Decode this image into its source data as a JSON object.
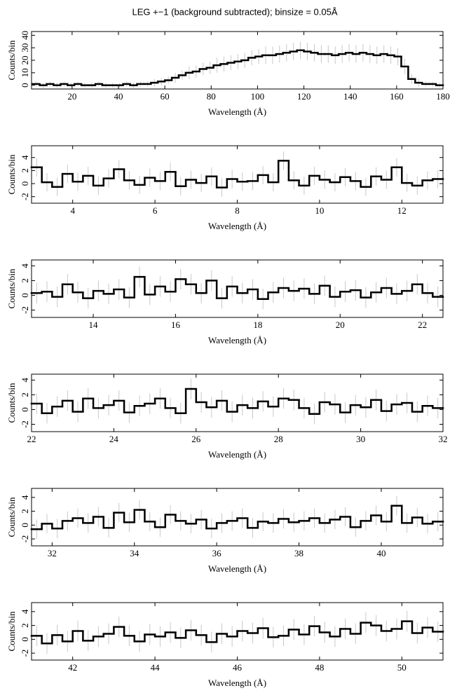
{
  "chart_data": [
    {
      "type": "histogram",
      "title": "LEG +−1 (background subtracted); binsize = 0.05Å",
      "xlabel": "Wavelength (Å)",
      "ylabel": "Counts/bin",
      "color": "#000000",
      "error_color": "#c8c8c8",
      "bins": [
        3,
        6,
        9,
        12,
        15,
        18,
        21,
        24,
        27,
        30,
        33,
        36,
        39,
        42,
        45,
        48,
        51,
        54,
        57,
        60,
        63,
        66,
        69,
        72,
        75,
        78,
        81,
        84,
        87,
        90,
        93,
        96,
        99,
        102,
        105,
        108,
        111,
        114,
        117,
        120,
        123,
        126,
        129,
        132,
        135,
        138,
        141,
        144,
        147,
        150,
        153,
        156,
        159,
        162,
        165,
        168,
        171,
        174,
        177,
        180
      ],
      "values": [
        1,
        0,
        1,
        0,
        1,
        0,
        1,
        0,
        0,
        1,
        0,
        0,
        0,
        1,
        0,
        1,
        1,
        2,
        3,
        4,
        6,
        8,
        10,
        11,
        13,
        14,
        16,
        17,
        18,
        19,
        20,
        22,
        23,
        24,
        24,
        25,
        26,
        27,
        28,
        27,
        26,
        25,
        25,
        24,
        25,
        26,
        25,
        26,
        25,
        24,
        25,
        24,
        23,
        15,
        5,
        2,
        1,
        1,
        0
      ],
      "errors": [
        2,
        2,
        2,
        2,
        2,
        2,
        2,
        2,
        2,
        2,
        2,
        2,
        2,
        2,
        2,
        2,
        2,
        3,
        3,
        3,
        4,
        4,
        5,
        5,
        5,
        5,
        6,
        6,
        6,
        6,
        6,
        6,
        6,
        7,
        7,
        7,
        7,
        7,
        7,
        7,
        7,
        7,
        7,
        7,
        7,
        7,
        7,
        7,
        7,
        7,
        7,
        7,
        7,
        6,
        4,
        3,
        2,
        2,
        2
      ],
      "xlim": [
        2.5,
        180
      ],
      "ylim": [
        -3,
        43
      ],
      "xticks": [
        20,
        40,
        60,
        80,
        100,
        120,
        140,
        160,
        180
      ],
      "yticks": [
        0,
        10,
        20,
        30,
        40
      ]
    },
    {
      "type": "histogram",
      "xlabel": "Wavelength (Å)",
      "ylabel": "Counts/bin",
      "color": "#000000",
      "error_color": "#c8c8c8",
      "bins": [
        3,
        3.25,
        3.5,
        3.75,
        4,
        4.25,
        4.5,
        4.75,
        5,
        5.25,
        5.5,
        5.75,
        6,
        6.25,
        6.5,
        6.75,
        7,
        7.25,
        7.5,
        7.75,
        8,
        8.25,
        8.5,
        8.75,
        9,
        9.25,
        9.5,
        9.75,
        10,
        10.25,
        10.5,
        10.75,
        11,
        11.25,
        11.5,
        11.75,
        12,
        12.25,
        12.5,
        12.75,
        13
      ],
      "values": [
        2.5,
        0.2,
        -0.5,
        1.5,
        0.3,
        1.2,
        -0.3,
        0.8,
        2.2,
        0.5,
        -0.2,
        0.9,
        0.4,
        1.8,
        -0.4,
        0.6,
        0.1,
        1.1,
        -0.6,
        0.7,
        0.3,
        0.4,
        1.3,
        0.2,
        3.5,
        0.5,
        -0.3,
        1.2,
        0.6,
        0.2,
        1.0,
        0.4,
        -0.5,
        1.1,
        0.6,
        2.5,
        0.1,
        -0.3,
        0.5,
        0.7
      ],
      "error": 1.4,
      "xlim": [
        3,
        13
      ],
      "ylim": [
        -3,
        5.8
      ],
      "xticks": [
        4,
        6,
        8,
        10,
        12
      ],
      "yticks": [
        -2,
        0,
        2,
        4
      ]
    },
    {
      "type": "histogram",
      "xlabel": "Wavelength (Å)",
      "ylabel": "Counts/bin",
      "color": "#000000",
      "error_color": "#c8c8c8",
      "bins": [
        12.5,
        12.75,
        13,
        13.25,
        13.5,
        13.75,
        14,
        14.25,
        14.5,
        14.75,
        15,
        15.25,
        15.5,
        15.75,
        16,
        16.25,
        16.5,
        16.75,
        17,
        17.25,
        17.5,
        17.75,
        18,
        18.25,
        18.5,
        18.75,
        19,
        19.25,
        19.5,
        19.75,
        20,
        20.25,
        20.5,
        20.75,
        21,
        21.25,
        21.5,
        21.75,
        22,
        22.25,
        22.5
      ],
      "values": [
        0.3,
        0.5,
        -0.2,
        1.5,
        0.4,
        -0.4,
        0.6,
        0.2,
        0.8,
        -0.3,
        2.5,
        0.1,
        1.2,
        0.5,
        2.2,
        1.5,
        0.3,
        2.0,
        -0.4,
        1.2,
        0.3,
        0.8,
        -0.5,
        0.4,
        1.0,
        0.6,
        0.9,
        0.2,
        1.3,
        -0.2,
        0.5,
        0.7,
        -0.3,
        0.4,
        1.0,
        0.2,
        0.6,
        1.5,
        0.3,
        -0.2
      ],
      "error": 1.4,
      "xlim": [
        12.5,
        22.5
      ],
      "ylim": [
        -3,
        4.8
      ],
      "xticks": [
        14,
        16,
        18,
        20,
        22
      ],
      "yticks": [
        -2,
        0,
        2,
        4
      ]
    },
    {
      "type": "histogram",
      "xlabel": "Wavelength (Å)",
      "ylabel": "Counts/bin",
      "color": "#000000",
      "error_color": "#c8c8c8",
      "bins": [
        22,
        22.25,
        22.5,
        22.75,
        23,
        23.25,
        23.5,
        23.75,
        24,
        24.25,
        24.5,
        24.75,
        25,
        25.25,
        25.5,
        25.75,
        26,
        26.25,
        26.5,
        26.75,
        27,
        27.25,
        27.5,
        27.75,
        28,
        28.25,
        28.5,
        28.75,
        29,
        29.25,
        29.5,
        29.75,
        30,
        30.25,
        30.5,
        30.75,
        31,
        31.25,
        31.5,
        31.75,
        32
      ],
      "values": [
        0.8,
        -0.5,
        0.4,
        1.2,
        -0.3,
        1.5,
        0.2,
        0.6,
        1.2,
        -0.4,
        0.5,
        0.8,
        1.5,
        0.2,
        -0.5,
        2.8,
        1.0,
        0.3,
        1.2,
        -0.3,
        0.6,
        0.2,
        1.1,
        0.4,
        1.5,
        1.3,
        0.2,
        -0.6,
        1.0,
        0.7,
        -0.4,
        0.6,
        0.3,
        1.3,
        -0.2,
        0.7,
        0.9,
        -0.3,
        0.5,
        0.2
      ],
      "error": 1.4,
      "xlim": [
        22,
        32
      ],
      "ylim": [
        -3,
        4.8
      ],
      "xticks": [
        22,
        24,
        26,
        28,
        30,
        32
      ],
      "yticks": [
        -2,
        0,
        2,
        4
      ]
    },
    {
      "type": "histogram",
      "xlabel": "Wavelength (Å)",
      "ylabel": "Counts/bin",
      "color": "#000000",
      "error_color": "#c8c8c8",
      "bins": [
        31.5,
        31.75,
        32,
        32.25,
        32.5,
        32.75,
        33,
        33.25,
        33.5,
        33.75,
        34,
        34.25,
        34.5,
        34.75,
        35,
        35.25,
        35.5,
        35.75,
        36,
        36.25,
        36.5,
        36.75,
        37,
        37.25,
        37.5,
        37.75,
        38,
        38.25,
        38.5,
        38.75,
        39,
        39.25,
        39.5,
        39.75,
        40,
        40.25,
        40.5,
        40.75,
        41,
        41.25,
        41.5
      ],
      "values": [
        -0.6,
        0.2,
        -0.5,
        0.6,
        1.0,
        0.3,
        1.2,
        -0.4,
        1.8,
        0.4,
        2.2,
        0.5,
        -0.3,
        1.5,
        0.6,
        0.2,
        0.8,
        -0.5,
        0.3,
        0.6,
        1.0,
        -0.4,
        0.5,
        0.3,
        0.9,
        0.4,
        0.6,
        1.0,
        0.3,
        0.8,
        1.2,
        -0.3,
        0.6,
        1.4,
        0.5,
        2.8,
        0.3,
        1.1,
        0.2,
        0.5
      ],
      "error": 1.4,
      "xlim": [
        31.5,
        41.5
      ],
      "ylim": [
        -3,
        5.3
      ],
      "xticks": [
        32,
        34,
        36,
        38,
        40
      ],
      "yticks": [
        -2,
        0,
        2,
        4
      ]
    },
    {
      "type": "histogram",
      "xlabel": "Wavelength (Å)",
      "ylabel": "Counts/bin",
      "color": "#000000",
      "error_color": "#c8c8c8",
      "bins": [
        41,
        41.25,
        41.5,
        41.75,
        42,
        42.25,
        42.5,
        42.75,
        43,
        43.25,
        43.5,
        43.75,
        44,
        44.25,
        44.5,
        44.75,
        45,
        45.25,
        45.5,
        45.75,
        46,
        46.25,
        46.5,
        46.75,
        47,
        47.25,
        47.5,
        47.75,
        48,
        48.25,
        48.5,
        48.75,
        49,
        49.25,
        49.5,
        49.75,
        50,
        50.25,
        50.5,
        50.75,
        51
      ],
      "values": [
        0.5,
        -0.6,
        0.6,
        -0.3,
        1.2,
        -0.2,
        0.4,
        0.8,
        1.8,
        0.5,
        -0.3,
        0.7,
        0.4,
        1.0,
        0.2,
        1.3,
        0.6,
        -0.4,
        0.8,
        0.4,
        1.2,
        0.9,
        1.6,
        0.3,
        0.5,
        1.4,
        0.7,
        1.9,
        1.0,
        0.4,
        1.5,
        0.8,
        2.4,
        2.0,
        1.2,
        1.5,
        2.6,
        0.9,
        1.7,
        1.1
      ],
      "error": 1.5,
      "xlim": [
        41,
        51
      ],
      "ylim": [
        -3,
        5.3
      ],
      "xticks": [
        42,
        44,
        46,
        48,
        50
      ],
      "yticks": [
        -2,
        0,
        2,
        4
      ]
    }
  ]
}
